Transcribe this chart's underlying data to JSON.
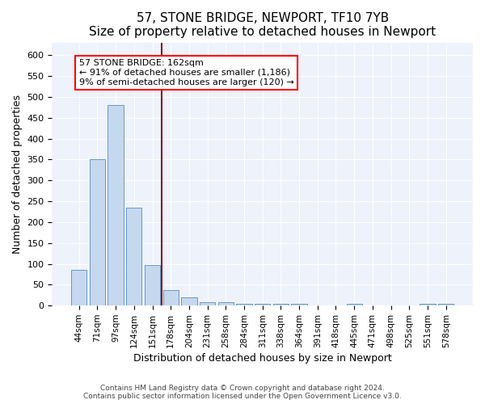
{
  "title": "57, STONE BRIDGE, NEWPORT, TF10 7YB",
  "subtitle": "Size of property relative to detached houses in Newport",
  "xlabel": "Distribution of detached houses by size in Newport",
  "ylabel": "Number of detached properties",
  "bar_labels": [
    "44sqm",
    "71sqm",
    "97sqm",
    "124sqm",
    "151sqm",
    "178sqm",
    "204sqm",
    "231sqm",
    "258sqm",
    "284sqm",
    "311sqm",
    "338sqm",
    "364sqm",
    "391sqm",
    "418sqm",
    "445sqm",
    "471sqm",
    "498sqm",
    "525sqm",
    "551sqm",
    "578sqm"
  ],
  "bar_values": [
    85,
    350,
    480,
    235,
    98,
    37,
    20,
    9,
    8,
    5,
    5,
    5,
    5,
    0,
    0,
    5,
    0,
    0,
    0,
    5,
    5
  ],
  "bar_color": "#c5d8ee",
  "bar_edgecolor": "#6699cc",
  "vline_x_index": 4.5,
  "vline_color": "#8b1a1a",
  "annotation_text": "57 STONE BRIDGE: 162sqm\n← 91% of detached houses are smaller (1,186)\n9% of semi-detached houses are larger (120) →",
  "annotation_box_color": "white",
  "annotation_box_edgecolor": "red",
  "ylim": [
    0,
    630
  ],
  "yticks": [
    0,
    50,
    100,
    150,
    200,
    250,
    300,
    350,
    400,
    450,
    500,
    550,
    600
  ],
  "footer": "Contains HM Land Registry data © Crown copyright and database right 2024.\nContains public sector information licensed under the Open Government Licence v3.0.",
  "bg_color": "#ffffff",
  "plot_bg_color": "#eef2fb",
  "grid_color": "#ffffff",
  "title_fontsize": 11,
  "subtitle_fontsize": 10,
  "axis_label_fontsize": 9,
  "tick_fontsize": 8,
  "annotation_fontsize": 8
}
